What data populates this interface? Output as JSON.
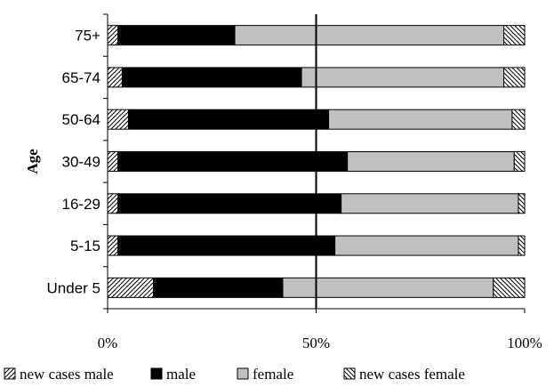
{
  "chart_data": {
    "type": "bar",
    "orientation": "horizontal",
    "stacked": true,
    "normalized_percent": true,
    "ylabel": "Age",
    "xlabel": "",
    "xlim": [
      0,
      100
    ],
    "x_ticks": [
      0,
      50,
      100
    ],
    "x_tick_labels": [
      "0%",
      "50%",
      "100%"
    ],
    "categories": [
      "75+",
      "65-74",
      "50-64",
      "30-49",
      "16-29",
      "5-15",
      "Under 5"
    ],
    "series": [
      {
        "name": "new cases male",
        "color": "#ffffff",
        "pattern": "diag-right",
        "values": [
          2.5,
          3.5,
          5,
          2.5,
          2.5,
          2.5,
          11
        ]
      },
      {
        "name": "male",
        "color": "#000000",
        "pattern": "solid",
        "values": [
          28,
          43,
          48,
          55,
          53.5,
          52,
          31
        ]
      },
      {
        "name": "female",
        "color": "#c0c0c0",
        "pattern": "solid",
        "values": [
          64.5,
          48.5,
          44,
          40,
          42.5,
          44,
          50.5
        ]
      },
      {
        "name": "new cases female",
        "color": "#ffffff",
        "pattern": "diag-left",
        "values": [
          5,
          5,
          3,
          2.5,
          1.5,
          1.5,
          7.5
        ]
      }
    ],
    "grid": {
      "vertical_major_lines": true,
      "line_at": 50
    },
    "legend": {
      "position": "bottom",
      "entries": [
        "new cases male",
        "male",
        "female",
        "new cases female"
      ]
    }
  }
}
